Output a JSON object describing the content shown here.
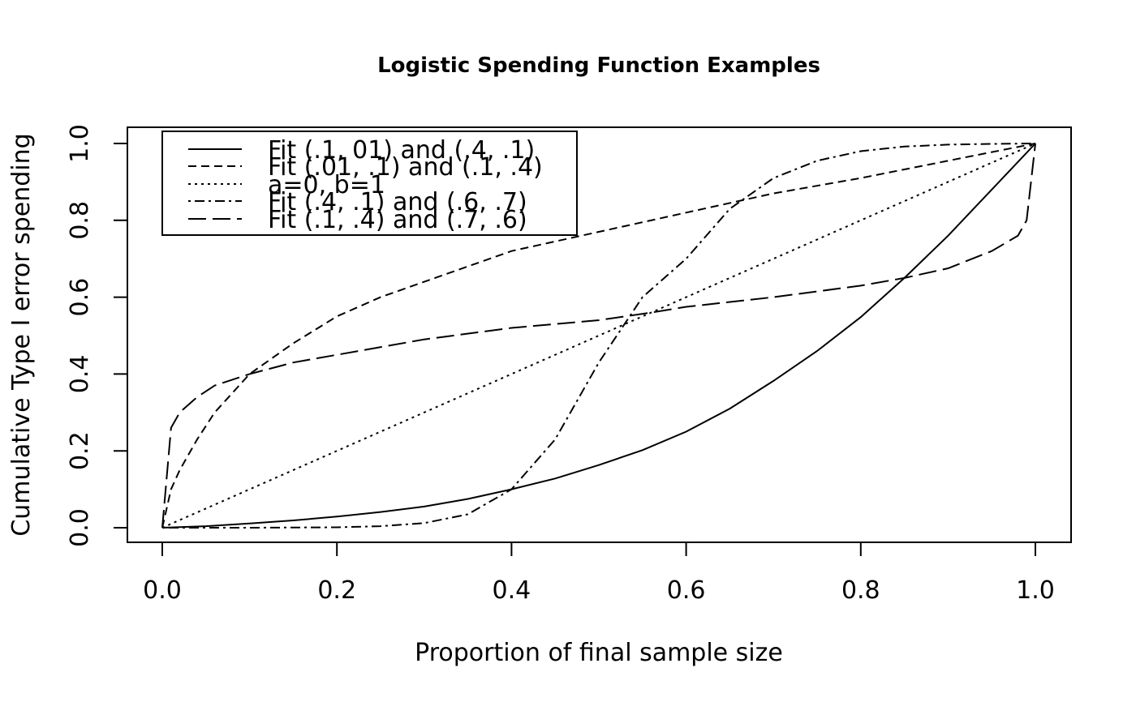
{
  "chart_data": {
    "type": "line",
    "title": "Logistic Spending Function Examples",
    "xlabel": "Proportion of final sample size",
    "ylabel": "Cumulative Type I error spending",
    "xlim": [
      0,
      1
    ],
    "ylim": [
      0,
      1
    ],
    "xticks": [
      "0.0",
      "0.2",
      "0.4",
      "0.6",
      "0.8",
      "1.0"
    ],
    "yticks": [
      "0.0",
      "0.2",
      "0.4",
      "0.6",
      "0.8",
      "1.0"
    ],
    "grid": false,
    "legend_position": "top-left",
    "series": [
      {
        "name": "Fit (.1, 01) and (.4, .1)",
        "dash": "solid",
        "x": [
          0,
          0.05,
          0.1,
          0.15,
          0.2,
          0.25,
          0.3,
          0.35,
          0.4,
          0.45,
          0.5,
          0.55,
          0.6,
          0.65,
          0.7,
          0.75,
          0.8,
          0.85,
          0.9,
          0.95,
          1.0
        ],
        "y": [
          0,
          0.004,
          0.011,
          0.019,
          0.029,
          0.041,
          0.055,
          0.075,
          0.1,
          0.128,
          0.163,
          0.202,
          0.25,
          0.31,
          0.382,
          0.46,
          0.548,
          0.65,
          0.76,
          0.88,
          1.0
        ]
      },
      {
        "name": "Fit (.01, .1) and (.1, .4)",
        "dash": "short-dash",
        "x": [
          0,
          0.01,
          0.02,
          0.04,
          0.06,
          0.08,
          0.1,
          0.15,
          0.2,
          0.25,
          0.3,
          0.4,
          0.5,
          0.6,
          0.7,
          0.8,
          0.9,
          1.0
        ],
        "y": [
          0,
          0.1,
          0.15,
          0.23,
          0.3,
          0.35,
          0.4,
          0.48,
          0.55,
          0.6,
          0.64,
          0.72,
          0.77,
          0.82,
          0.87,
          0.91,
          0.955,
          1.0
        ]
      },
      {
        "name": "a=0, b=1",
        "dash": "dotted",
        "x": [
          0,
          1
        ],
        "y": [
          0,
          1
        ]
      },
      {
        "name": "Fit (.4, .1) and (.6, .7)",
        "dash": "dash-dot",
        "x": [
          0,
          0.1,
          0.2,
          0.25,
          0.3,
          0.35,
          0.4,
          0.45,
          0.5,
          0.55,
          0.6,
          0.65,
          0.7,
          0.75,
          0.8,
          0.85,
          0.9,
          0.95,
          1.0
        ],
        "y": [
          0,
          0,
          0.001,
          0.004,
          0.012,
          0.035,
          0.1,
          0.23,
          0.43,
          0.6,
          0.7,
          0.83,
          0.91,
          0.955,
          0.98,
          0.992,
          0.997,
          0.999,
          1.0
        ]
      },
      {
        "name": "Fit (.1, .4) and (.7, .6)",
        "dash": "long-dash",
        "x": [
          0,
          0.01,
          0.02,
          0.04,
          0.06,
          0.1,
          0.15,
          0.2,
          0.3,
          0.4,
          0.5,
          0.56,
          0.6,
          0.7,
          0.8,
          0.85,
          0.9,
          0.95,
          0.98,
          0.99,
          1.0
        ],
        "y": [
          0,
          0.26,
          0.3,
          0.34,
          0.37,
          0.4,
          0.43,
          0.45,
          0.49,
          0.52,
          0.54,
          0.56,
          0.575,
          0.6,
          0.63,
          0.65,
          0.675,
          0.72,
          0.76,
          0.8,
          1.0
        ]
      }
    ]
  }
}
